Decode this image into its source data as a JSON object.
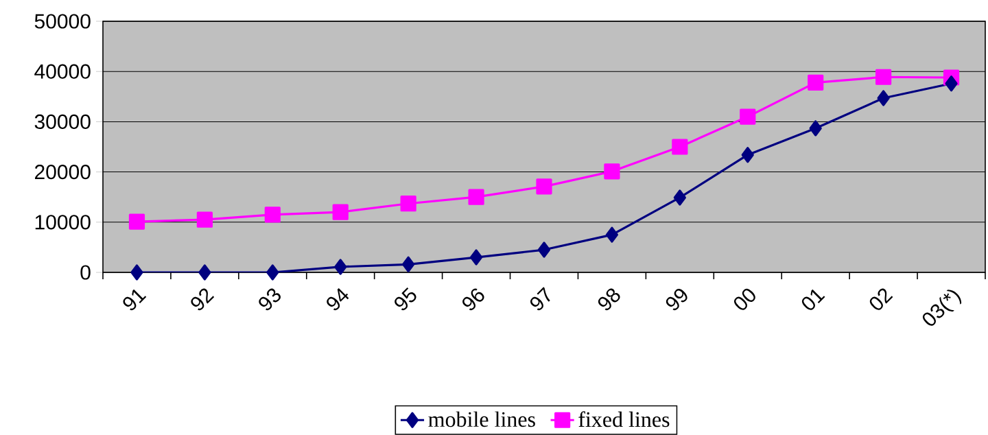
{
  "chart_data": {
    "type": "line",
    "categories": [
      "91",
      "92",
      "93",
      "94",
      "95",
      "96",
      "97",
      "98",
      "99",
      "00",
      "01",
      "02",
      "03(*)"
    ],
    "series": [
      {
        "name": "mobile lines",
        "color": "#000080",
        "marker": "diamond",
        "values": [
          0,
          0,
          0,
          1100,
          1600,
          3000,
          4500,
          7500,
          14900,
          23400,
          28700,
          34700,
          37600
        ]
      },
      {
        "name": "fixed lines",
        "color": "#ff00ff",
        "marker": "square",
        "values": [
          10100,
          10500,
          11500,
          12000,
          13700,
          15000,
          17100,
          20100,
          25000,
          31000,
          37800,
          38900,
          38800
        ]
      }
    ],
    "ylim": [
      0,
      50000
    ],
    "yticks": [
      0,
      10000,
      20000,
      30000,
      40000,
      50000
    ],
    "grid": "y",
    "legend": "bottom",
    "line_style": "solid"
  }
}
